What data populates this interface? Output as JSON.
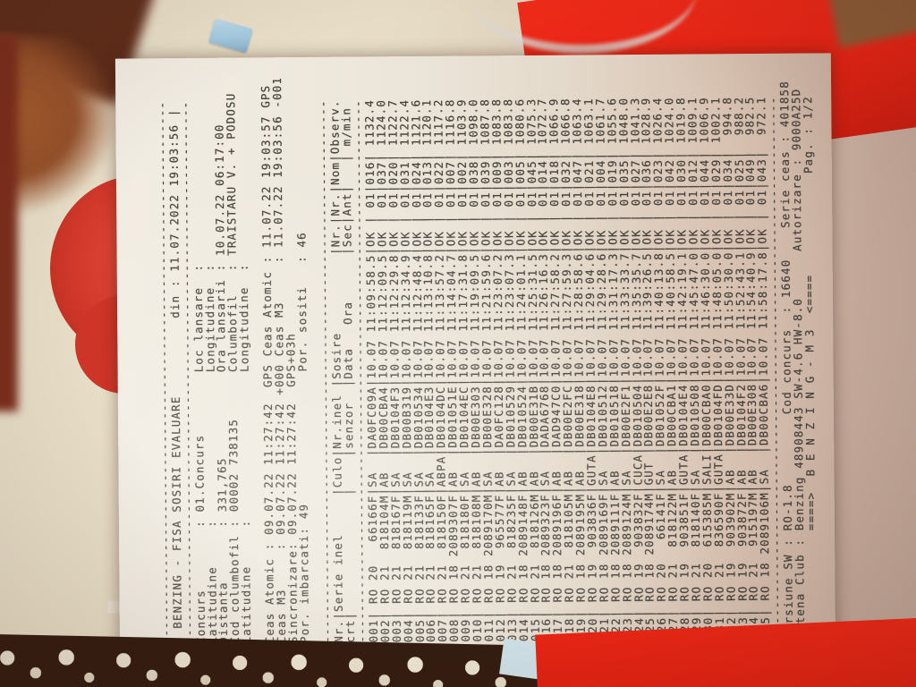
{
  "photo": {
    "surface_cream": "#e8dfc9",
    "surface_pink_tan": "#c2a89a",
    "red_object": "#d63a2c",
    "red_book_top": "#e42315",
    "table_brown": "#95502a",
    "lace_white": "#ece4d0",
    "paper": "#ece6da",
    "ink": "#45413b"
  },
  "document": {
    "separator_line": "----------------------------------------------------------------------",
    "title_line": "| BENZING - FISA SOSIRI EVALUARE          din : 11.07.2022 19:03:56 |",
    "info_lines": [
      "Concurs        : 01.Concurs        Loc lansare  :",
      "Latitudine     :                   Longitudine  :",
      "Distanta       : 331,765           Ora lansarii : 10.07.22 06:17:00",
      "Cod columbofil : 00002 738135      Columbofil   : TRAISTARU V. + PODOSU",
      "Latitudine     :                   Longitudine  :"
    ],
    "clock_lines": [
      "Ceas Atomic : 09.07.22 11:27:42  GPS Ceas Atomic : 11.07.22 19:03:57 GPS",
      "Ceas M3     : 09.07.22 11:27:42 +000 Ceas M3     : 11.07.22 19:03:56 -001",
      "Sincronizare: 09.07.22 11:27:42  GPS+03h",
      "Por. imbarcati: 49                 Por. sositi   : 46"
    ],
    "table": {
      "header_line1": "Nr.|Serie inel     |Culo|Nr.inel |Sosire          |Nr.|Nr.|Nom|Observ.",
      "header_line2": "crt|               |    |senzor  |Data   Ora      |Sec|Ant|   | m/min",
      "rows": [
        [
          "001",
          " RO 20   66166F",
          "SA  ",
          "DA0FC09A",
          "10.07 11:09:58.5",
          "OK ",
          " 01",
          "016",
          " 1132.4"
        ],
        [
          "002",
          " RO 21  818104M",
          "AB  ",
          "DB00CBA4",
          "10.07 11:12:09.5",
          "OK ",
          " 01",
          "037",
          " 1124.0"
        ],
        [
          "003",
          " RO 21  818167F",
          "SA  ",
          "DB0104F3",
          "10.07 11:12:29.8",
          "OK ",
          " 01",
          "020",
          " 1122.7"
        ],
        [
          "004",
          " RO 21  818119M",
          "SA  ",
          "DB00B319",
          "10.07 11:12:34.9",
          "OK ",
          " 01",
          "031",
          " 1122.4"
        ],
        [
          "005",
          " RO 21  818133F",
          "SA  ",
          "DB010534",
          "10.07 11:12:48.4",
          "OK ",
          " 01",
          "024",
          " 1121.6"
        ],
        [
          "006",
          " RO 21  818165F",
          "SA  ",
          "DB0104E3",
          "10.07 11:13:10.8",
          "OK ",
          " 01",
          "013",
          " 1120.1"
        ],
        [
          "007",
          " RO 21  818150F",
          "ABPA",
          "DB0104DC",
          "10.07 11:13:57.2",
          "OK ",
          " 01",
          "022",
          " 1117.2"
        ],
        [
          "008",
          " RO 18 2089307F",
          "AB  ",
          "DB01051E",
          "10.07 11:14:04.7",
          "OK ",
          " 01",
          "007",
          " 1116.8"
        ],
        [
          "009",
          " RO 21  818180F",
          "SA  ",
          "DB0104EC",
          "10.07 11:17:31.8",
          "OK ",
          " 01",
          "002",
          " 1103.9"
        ],
        [
          "010",
          " RO 21  818108M",
          "AB  ",
          "DB00E303",
          "10.07 11:19:09.5",
          "OK ",
          " 01",
          "038",
          " 1098.0"
        ],
        [
          "011",
          " RO 18 2089170M",
          "SA  ",
          "DB00E328",
          "10.07 11:21:59.6",
          "OK ",
          " 01",
          "039",
          " 1087.8"
        ],
        [
          "012",
          " RO 19  965577F",
          "AB  ",
          "DA0FC128",
          "10.07 11:23:07.2",
          "OK ",
          " 01",
          "009",
          " 1083.8"
        ],
        [
          "013",
          " RO 21  818235F",
          "SA  ",
          "DB010529",
          "10.07 11:23:07.3",
          "OK ",
          " 01",
          "003",
          " 1083.8"
        ],
        [
          "014",
          " RO 18 2089148F",
          "AB  ",
          "DB010524",
          "10.07 11:24:01.1",
          "OK ",
          " 01",
          "005",
          " 1080.6"
        ],
        [
          "015",
          " RO 21  818126M",
          "AB  ",
          "DB00E31B",
          "10.07 11:25:31.5",
          "OK ",
          " 01",
          "045",
          " 1075.3"
        ],
        [
          "016",
          " RO 18 2089323F",
          "SA  ",
          "DADA6768",
          "10.07 11:26:16.3",
          "OK ",
          " 01",
          "014",
          " 1072.7"
        ],
        [
          "017",
          " RO 18 2089196F",
          "AB  ",
          "DAD947C0",
          "10.07 11:27:58.2",
          "OK ",
          " 01",
          "018",
          " 1066.9"
        ],
        [
          "018",
          " RO 21  818105M",
          "AB  ",
          "DB00E2FC",
          "10.07 11:27:59.3",
          "OK ",
          " 01",
          "032",
          " 1066.8"
        ],
        [
          "019",
          " RO 18 2089195M",
          "AB  ",
          "DB00E318",
          "10.07 11:28:58.6",
          "OK ",
          " 01",
          "047",
          " 1063.4"
        ],
        [
          "020",
          " RO 19  903836F",
          "GUTA",
          "DB0104E8",
          "10.07 11:29:04.6",
          "OK ",
          " 01",
          "021",
          " 1063.1"
        ],
        [
          "021",
          " RO 18 2089169F",
          "SA  ",
          "DB010512",
          "10.07 11:29:28.6",
          "OK ",
          " 01",
          "004",
          " 1061.7"
        ],
        [
          "022",
          " RO 18 2089111F",
          "AB  ",
          "DB010518",
          "10.07 11:31:17.3",
          "OK ",
          " 01",
          "019",
          " 1055.6"
        ],
        [
          "023",
          " RO 18 2089124M",
          "SA  ",
          "DB00E2F1",
          "10.07 11:33:33.7",
          "OK ",
          " 01",
          "035",
          " 1048.0"
        ],
        [
          "024",
          " RO 19  903832F",
          "CUCA",
          "DB010504",
          "10.07 11:35:35.7",
          "OK ",
          " 01",
          "027",
          " 1041.3"
        ],
        [
          "025",
          " RO 18 2089174M",
          "GUT ",
          "DB00E2E8",
          "10.07 11:39:26.5",
          "OK ",
          " 01",
          "036",
          " 1028.9"
        ],
        [
          "026",
          " RO 20   66141F",
          "SA  ",
          "DB01052F",
          "10.07 11:40:13.8",
          "OK ",
          " 01",
          "023",
          " 1026.4"
        ],
        [
          "027",
          " RO 21  818122M",
          "AB  ",
          "DB00CBA1",
          "10.07 11:40:58.5",
          "OK ",
          " 01",
          "042",
          " 1024.0"
        ],
        [
          "028",
          " RO 19  903851F",
          "GUTA",
          "DB0104E4",
          "10.07 11:42:19.1",
          "OK ",
          " 01",
          "030",
          " 1019.8"
        ],
        [
          "029",
          " RO 21  818140F",
          "SA  ",
          "DB010508",
          "10.07 11:45:47.0",
          "OK ",
          " 01",
          "012",
          " 1009.1"
        ],
        [
          "030",
          " RO 20  615385M",
          "SALI",
          "DB00CBA0",
          "10.07 11:46:30.0",
          "OK ",
          " 01",
          "044",
          " 1006.9"
        ],
        [
          "031",
          " RO 21  836590F",
          "GUTA",
          "DB0104FD",
          "10.07 11:48:05.0",
          "OK ",
          " 01",
          "029",
          " 1002.1"
        ],
        [
          "032",
          " RO 19  903902M",
          "AB  ",
          "DB00E33D",
          "10.07 11:50:30.0",
          "OK ",
          " 01",
          "034",
          "  994.8"
        ],
        [
          "033",
          " RO 19  903872F",
          "AB  ",
          "DB0104F2",
          "10.07 11:52:43.1",
          "OK ",
          " 01",
          "025",
          "  988.2"
        ],
        [
          "034",
          " RO 21  915197M",
          "AB  ",
          "DB00E308",
          "10.07 11:54:40.9",
          "OK ",
          " 01",
          "049",
          "  982.5"
        ],
        [
          "035",
          " RO 18 2089106M",
          "SA  ",
          "DB00CBA6",
          "10.07 11:58:17.8",
          "OK ",
          " 01",
          "043",
          "  972.1"
        ]
      ]
    },
    "footer_lines": [
      "Versiune SW : RO-1.8         Cod concurs  : 16640    Serie ceas : 401858",
      "Antena Club : Benzing 48908443 SW-4.6 HW-8.0      Autorizare : 9000A25D",
      "              ====>  B E N Z I N G - M 3  <====             Pag. : 1/2"
    ]
  }
}
